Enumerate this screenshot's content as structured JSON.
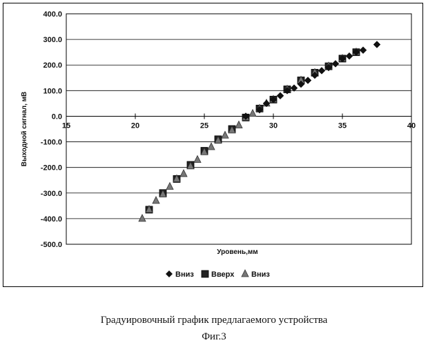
{
  "chart_data": {
    "type": "scatter",
    "title": "",
    "xlabel": "Уровень,мм",
    "ylabel": "Выходной сигнал, мВ",
    "xlim": [
      15,
      40
    ],
    "ylim": [
      -500,
      400
    ],
    "xticks": [
      "15",
      "20",
      "25",
      "30",
      "35",
      "40"
    ],
    "yticks": [
      "400.0",
      "300.0",
      "200.0",
      "100.0",
      "0.0",
      "-100.0",
      "-200.0",
      "-300.0",
      "-400.0",
      "-500.0"
    ],
    "grid": "horizontal",
    "legend_position": "bottom",
    "series": [
      {
        "name": "Вниз",
        "marker": "diamond",
        "color": "#111111",
        "points": [
          [
            28,
            0
          ],
          [
            29,
            25
          ],
          [
            29.5,
            50
          ],
          [
            30,
            65
          ],
          [
            30.5,
            80
          ],
          [
            31,
            100
          ],
          [
            31.5,
            110
          ],
          [
            32,
            125
          ],
          [
            32.5,
            140
          ],
          [
            33,
            160
          ],
          [
            33.5,
            178
          ],
          [
            34,
            190
          ],
          [
            34.5,
            205
          ],
          [
            35,
            225
          ],
          [
            35.5,
            235
          ],
          [
            36,
            250
          ],
          [
            36.5,
            258
          ],
          [
            37.5,
            280
          ]
        ]
      },
      {
        "name": "Вверх",
        "marker": "square",
        "color": "#222222",
        "points": [
          [
            21,
            -365
          ],
          [
            22,
            -300
          ],
          [
            23,
            -245
          ],
          [
            24,
            -190
          ],
          [
            25,
            -135
          ],
          [
            26,
            -90
          ],
          [
            27,
            -50
          ],
          [
            28,
            -5
          ],
          [
            29,
            30
          ],
          [
            30,
            65
          ],
          [
            31,
            105
          ],
          [
            32,
            140
          ],
          [
            33,
            170
          ],
          [
            34,
            195
          ],
          [
            35,
            225
          ],
          [
            36,
            250
          ]
        ]
      },
      {
        "name": "Вниз",
        "marker": "triangle",
        "color": "#777777",
        "points": [
          [
            20.5,
            -400
          ],
          [
            21,
            -365
          ],
          [
            21.5,
            -330
          ],
          [
            22,
            -305
          ],
          [
            22.5,
            -275
          ],
          [
            23,
            -245
          ],
          [
            23.5,
            -225
          ],
          [
            24,
            -195
          ],
          [
            24.5,
            -170
          ],
          [
            25,
            -140
          ],
          [
            25.5,
            -120
          ],
          [
            26,
            -95
          ],
          [
            26.5,
            -75
          ],
          [
            27,
            -55
          ],
          [
            27.5,
            -35
          ],
          [
            28,
            -5
          ],
          [
            28.5,
            10
          ],
          [
            29,
            30
          ],
          [
            29.5,
            50
          ],
          [
            30,
            65
          ],
          [
            31,
            105
          ],
          [
            32,
            140
          ],
          [
            33,
            170
          ],
          [
            34,
            195
          ],
          [
            35,
            225
          ],
          [
            36,
            250
          ]
        ]
      }
    ]
  },
  "caption": "Градуировочный график  предлагаемого устройства",
  "figure_label": "Фиг.3"
}
